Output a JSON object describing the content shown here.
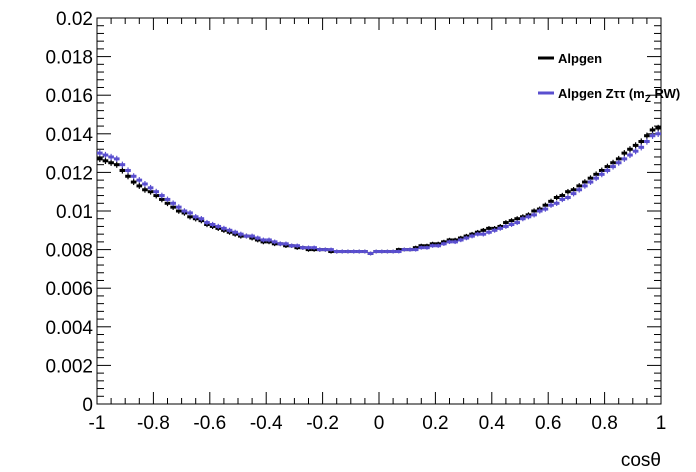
{
  "chart_data": {
    "type": "scatter",
    "title": "",
    "xlabel": "cosθ",
    "ylabel": "",
    "xlim": [
      -1,
      1
    ],
    "ylim": [
      0,
      0.02
    ],
    "x_tick_labels": [
      "-1",
      "-0.8",
      "-0.6",
      "-0.4",
      "-0.2",
      "0",
      "0.2",
      "0.4",
      "0.6",
      "0.8",
      "1"
    ],
    "y_tick_labels": [
      "0",
      "0.002",
      "0.004",
      "0.006",
      "0.008",
      "0.01",
      "0.012",
      "0.014",
      "0.016",
      "0.018",
      "0.02"
    ],
    "grid": false,
    "legend_position": "top-right",
    "bin_width": 0.02,
    "x": [
      -0.99,
      -0.97,
      -0.95,
      -0.93,
      -0.91,
      -0.89,
      -0.87,
      -0.85,
      -0.83,
      -0.81,
      -0.79,
      -0.77,
      -0.75,
      -0.73,
      -0.71,
      -0.69,
      -0.67,
      -0.65,
      -0.63,
      -0.61,
      -0.59,
      -0.57,
      -0.55,
      -0.53,
      -0.51,
      -0.49,
      -0.47,
      -0.45,
      -0.43,
      -0.41,
      -0.39,
      -0.37,
      -0.35,
      -0.33,
      -0.31,
      -0.29,
      -0.27,
      -0.25,
      -0.23,
      -0.21,
      -0.19,
      -0.17,
      -0.15,
      -0.13,
      -0.11,
      -0.09,
      -0.07,
      -0.05,
      -0.03,
      -0.01,
      0.01,
      0.03,
      0.05,
      0.07,
      0.09,
      0.11,
      0.13,
      0.15,
      0.17,
      0.19,
      0.21,
      0.23,
      0.25,
      0.27,
      0.29,
      0.31,
      0.33,
      0.35,
      0.37,
      0.39,
      0.41,
      0.43,
      0.45,
      0.47,
      0.49,
      0.51,
      0.53,
      0.55,
      0.57,
      0.59,
      0.61,
      0.63,
      0.65,
      0.67,
      0.69,
      0.71,
      0.73,
      0.75,
      0.77,
      0.79,
      0.81,
      0.83,
      0.85,
      0.87,
      0.89,
      0.91,
      0.93,
      0.95,
      0.97,
      0.99
    ],
    "series": [
      {
        "name": "Alpgen",
        "color": "#000000",
        "values": [
          0.0127,
          0.0126,
          0.0125,
          0.0124,
          0.0121,
          0.0118,
          0.0115,
          0.0113,
          0.0111,
          0.011,
          0.0108,
          0.0106,
          0.0104,
          0.0102,
          0.01,
          0.0099,
          0.0097,
          0.0096,
          0.0095,
          0.0093,
          0.0092,
          0.0091,
          0.009,
          0.0089,
          0.0088,
          0.0087,
          0.0087,
          0.0086,
          0.0085,
          0.0084,
          0.0084,
          0.0083,
          0.0083,
          0.0082,
          0.0082,
          0.0081,
          0.0081,
          0.008,
          0.008,
          0.008,
          0.008,
          0.0079,
          0.0079,
          0.0079,
          0.0079,
          0.0079,
          0.0079,
          0.0079,
          0.0078,
          0.0079,
          0.0079,
          0.0079,
          0.0079,
          0.008,
          0.008,
          0.008,
          0.0081,
          0.0082,
          0.0082,
          0.0083,
          0.0083,
          0.0084,
          0.0085,
          0.0085,
          0.0086,
          0.0087,
          0.0088,
          0.0089,
          0.009,
          0.0091,
          0.0091,
          0.0092,
          0.0094,
          0.0095,
          0.0096,
          0.0097,
          0.0098,
          0.01,
          0.0101,
          0.0103,
          0.0105,
          0.0107,
          0.0108,
          0.011,
          0.0111,
          0.0113,
          0.0115,
          0.0117,
          0.0119,
          0.0121,
          0.0123,
          0.0125,
          0.0127,
          0.013,
          0.0132,
          0.0134,
          0.0136,
          0.0139,
          0.0142,
          0.0143
        ]
      },
      {
        "name": "Alpgen Zττ (m_Z RW)",
        "color": "#5a4fcf",
        "values": [
          0.013,
          0.0129,
          0.0128,
          0.0127,
          0.0124,
          0.0121,
          0.0118,
          0.0116,
          0.0114,
          0.0112,
          0.011,
          0.0108,
          0.0106,
          0.0104,
          0.0102,
          0.01,
          0.0099,
          0.0097,
          0.0096,
          0.0094,
          0.0093,
          0.0092,
          0.0091,
          0.009,
          0.0089,
          0.0088,
          0.0087,
          0.0087,
          0.0086,
          0.0085,
          0.0085,
          0.0084,
          0.0083,
          0.0083,
          0.0082,
          0.0082,
          0.0081,
          0.0081,
          0.0081,
          0.008,
          0.008,
          0.008,
          0.0079,
          0.0079,
          0.0079,
          0.0079,
          0.0079,
          0.0079,
          0.0078,
          0.0079,
          0.0079,
          0.0079,
          0.0079,
          0.0079,
          0.008,
          0.008,
          0.008,
          0.0081,
          0.0081,
          0.0082,
          0.0082,
          0.0083,
          0.0084,
          0.0084,
          0.0085,
          0.0086,
          0.0087,
          0.0088,
          0.0088,
          0.0089,
          0.009,
          0.0091,
          0.0092,
          0.0093,
          0.0094,
          0.0096,
          0.0097,
          0.0098,
          0.01,
          0.0101,
          0.0103,
          0.0104,
          0.0106,
          0.0107,
          0.0109,
          0.0111,
          0.0113,
          0.0115,
          0.0117,
          0.0119,
          0.0121,
          0.0123,
          0.0125,
          0.0127,
          0.0129,
          0.0131,
          0.0133,
          0.0136,
          0.0139,
          0.014
        ]
      }
    ],
    "legend": {
      "entries": [
        {
          "label": "Alpgen",
          "color": "#000000"
        },
        {
          "label_main": "Alpgen Zττ (m",
          "label_sub": "Z",
          "label_tail": " RW)",
          "color": "#5a4fcf"
        }
      ]
    }
  }
}
